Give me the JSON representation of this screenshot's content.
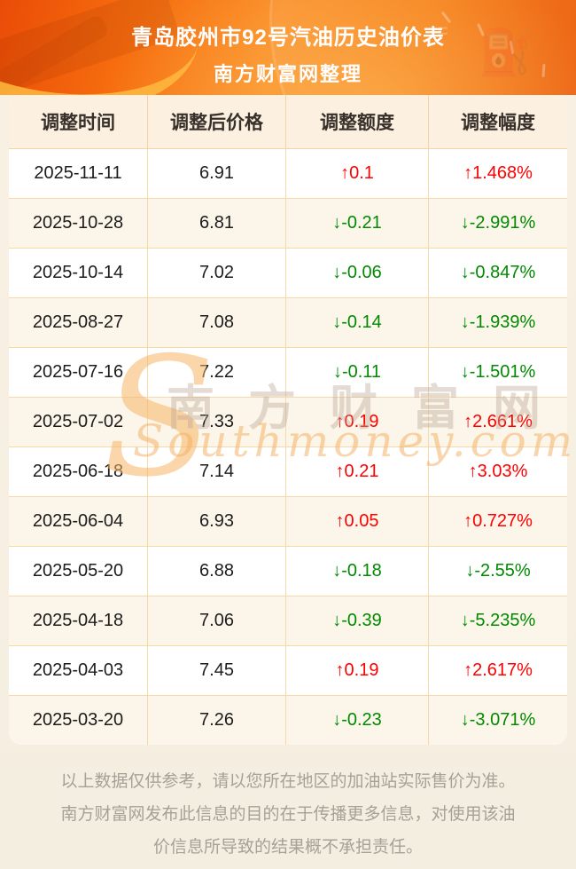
{
  "header": {
    "title": "青岛胶州市92号汽油历史油价表",
    "subtitle": "南方财富网整理",
    "icons": {
      "fuel_pump": "⛽",
      "gauge_f_label": "F"
    }
  },
  "table": {
    "columns": [
      "调整时间",
      "调整后价格",
      "调整额度",
      "调整幅度"
    ],
    "up_color": "#fe0000",
    "down_color": "#008a00",
    "rows": [
      {
        "date": "2025-11-11",
        "price": "6.91",
        "change": "↑0.1",
        "pct": "↑1.468%",
        "dir": "up"
      },
      {
        "date": "2025-10-28",
        "price": "6.81",
        "change": "↓-0.21",
        "pct": "↓-2.991%",
        "dir": "down"
      },
      {
        "date": "2025-10-14",
        "price": "7.02",
        "change": "↓-0.06",
        "pct": "↓-0.847%",
        "dir": "down"
      },
      {
        "date": "2025-08-27",
        "price": "7.08",
        "change": "↓-0.14",
        "pct": "↓-1.939%",
        "dir": "down"
      },
      {
        "date": "2025-07-16",
        "price": "7.22",
        "change": "↓-0.11",
        "pct": "↓-1.501%",
        "dir": "down"
      },
      {
        "date": "2025-07-02",
        "price": "7.33",
        "change": "↑0.19",
        "pct": "↑2.661%",
        "dir": "up"
      },
      {
        "date": "2025-06-18",
        "price": "7.14",
        "change": "↑0.21",
        "pct": "↑3.03%",
        "dir": "up"
      },
      {
        "date": "2025-06-04",
        "price": "6.93",
        "change": "↑0.05",
        "pct": "↑0.727%",
        "dir": "up"
      },
      {
        "date": "2025-05-20",
        "price": "6.88",
        "change": "↓-0.18",
        "pct": "↓-2.55%",
        "dir": "down"
      },
      {
        "date": "2025-04-18",
        "price": "7.06",
        "change": "↓-0.39",
        "pct": "↓-5.235%",
        "dir": "down"
      },
      {
        "date": "2025-04-03",
        "price": "7.45",
        "change": "↑0.19",
        "pct": "↑2.617%",
        "dir": "up"
      },
      {
        "date": "2025-03-20",
        "price": "7.26",
        "change": "↓-0.23",
        "pct": "↓-3.071%",
        "dir": "down"
      }
    ]
  },
  "watermark": {
    "s": "S",
    "cn": "南方财富网",
    "en": "Southmoney.com"
  },
  "footer": {
    "text": "以上数据仅供参考，请以您所在地区的加油站实际售价为准。南方财富网发布此信息的目的在于传播更多信息，对使用该油价信息所导致的结果概不承担责任。"
  }
}
